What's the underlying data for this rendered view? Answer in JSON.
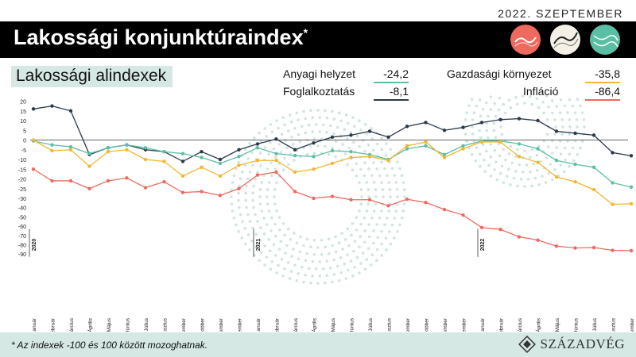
{
  "header": {
    "date": "2022. SZEPTEMBER",
    "title": "Lakossági konjunktúraindex",
    "title_mark": "*",
    "subtitle": "Lakossági alindexek"
  },
  "legend": [
    {
      "label": "Anyagi helyzet",
      "value": "-24,2",
      "color": "#5bbfa5"
    },
    {
      "label": "Foglalkoztatás",
      "value": "-8,1",
      "color": "#2a3a4a"
    },
    {
      "label": "Gazdasági környezet",
      "value": "-35,8",
      "color": "#f2b632"
    },
    {
      "label": "Infláció",
      "value": "-86,4",
      "color": "#ee6a5e"
    }
  ],
  "footer": {
    "note": "* Az indexek -100 és 100 között mozoghatnak.",
    "logo": "SZÁZADVÉG"
  },
  "icons": [
    "red-circle-icon",
    "white-circle-icon",
    "green-circle-icon"
  ],
  "chart_data": {
    "type": "line",
    "x": [
      "Január",
      "Február",
      "Március",
      "Április",
      "Május",
      "Június",
      "Július",
      "Augusztus",
      "Szeptember",
      "Október",
      "November",
      "December",
      "Január",
      "Február",
      "Március",
      "Április",
      "Május",
      "Június",
      "Július",
      "Augusztus",
      "Szeptember",
      "Október",
      "November",
      "December",
      "Január",
      "Február",
      "Március",
      "Április",
      "Május",
      "Június",
      "Július",
      "Augusztus",
      "Szeptember"
    ],
    "year_labels": [
      {
        "index": 0,
        "label": "2020"
      },
      {
        "index": 12,
        "label": "2021"
      },
      {
        "index": 24,
        "label": "2022"
      }
    ],
    "yticks": [
      20,
      15,
      10,
      5,
      0,
      -5,
      -10,
      -15,
      -20,
      -25,
      -30,
      -40,
      -50,
      -60,
      -70,
      -80,
      -90
    ],
    "series": [
      {
        "name": "Foglalkoztatás",
        "color": "#2a3a4a",
        "values": [
          16,
          17.5,
          15,
          -7.5,
          -4,
          -2.5,
          -5,
          -6,
          -11,
          -6,
          -10,
          -5,
          -2,
          0.5,
          -5,
          -1.5,
          1.5,
          2.5,
          4.5,
          1.5,
          7,
          9,
          5,
          6.5,
          9,
          10.5,
          11,
          10,
          4.5,
          3.5,
          2.5,
          -6.5,
          -8.1
        ]
      },
      {
        "name": "Anyagi helyzet",
        "color": "#5bbfa5",
        "values": [
          -0.5,
          -2.5,
          -3.5,
          -7,
          -4,
          -2.5,
          -4,
          -6,
          -7,
          -9,
          -12,
          -8.5,
          -4,
          -7,
          -8,
          -8.5,
          -5.5,
          -6,
          -7.5,
          -10,
          -4.5,
          -3,
          -7.5,
          -3,
          -0.5,
          -0.5,
          -2,
          -4.5,
          -10.5,
          -12.5,
          -14,
          -22,
          -24.2
        ]
      },
      {
        "name": "Gazdasági környezet",
        "color": "#f2b632",
        "values": [
          0,
          -5.5,
          -5,
          -13.5,
          -6,
          -5,
          -10,
          -11,
          -18.5,
          -14,
          -18.5,
          -13,
          -10.5,
          -10.5,
          -16.5,
          -15,
          -12,
          -9,
          -8.5,
          -10.5,
          -3,
          -1,
          -9,
          -4.5,
          -1,
          -1,
          -8.5,
          -11.5,
          -19,
          -21.5,
          -25.5,
          -36.5,
          -35.8
        ]
      },
      {
        "name": "Infláció",
        "color": "#ee6a5e",
        "values": [
          -15,
          -21,
          -21,
          -25,
          -21,
          -19.5,
          -24.5,
          -21.5,
          -27,
          -26.5,
          -28.5,
          -25,
          -18,
          -16.5,
          -26.5,
          -30,
          -29,
          -31.5,
          -31.5,
          -38,
          -31,
          -34.5,
          -42,
          -48,
          -61.5,
          -63.5,
          -71.5,
          -75,
          -81.5,
          -83.5,
          -83,
          -86,
          -86.4
        ]
      }
    ]
  }
}
